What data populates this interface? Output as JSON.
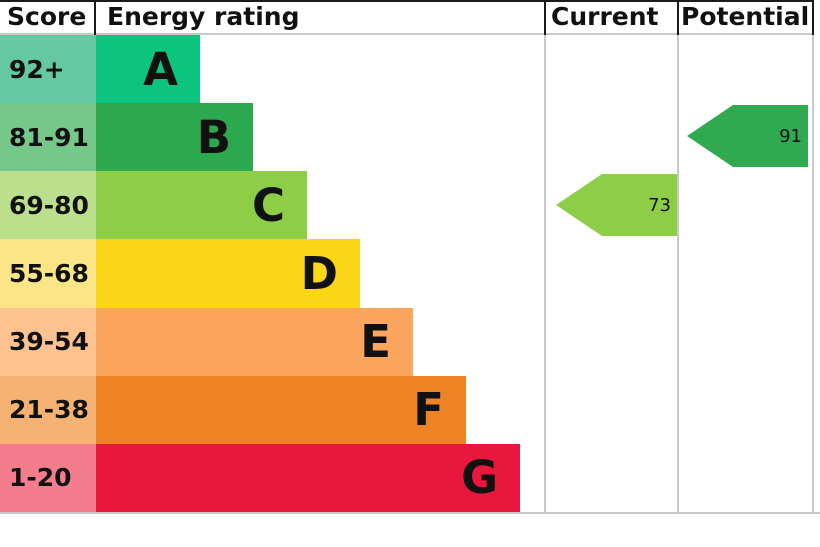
{
  "header": {
    "score": "Score",
    "energy_rating": "Energy rating",
    "current": "Current",
    "potential": "Potential"
  },
  "bands": [
    {
      "score_range": "92+",
      "letter": "A",
      "band_color": "#0bc47e",
      "score_cell_color": "#66c8a3"
    },
    {
      "score_range": "81-91",
      "letter": "B",
      "band_color": "#2ca94f",
      "score_cell_color": "#76c88a"
    },
    {
      "score_range": "69-80",
      "letter": "C",
      "band_color": "#8dce46",
      "score_cell_color": "#bbdf8d"
    },
    {
      "score_range": "55-68",
      "letter": "D",
      "band_color": "#f9d616",
      "score_cell_color": "#fce586"
    },
    {
      "score_range": "39-54",
      "letter": "E",
      "band_color": "#faa65e",
      "score_cell_color": "#fcc290"
    },
    {
      "score_range": "21-38",
      "letter": "F",
      "band_color": "#ee8326",
      "score_cell_color": "#f5b273"
    },
    {
      "score_range": "1-20",
      "letter": "G",
      "band_color": "#e9173d",
      "score_cell_color": "#f37c8d"
    }
  ],
  "current_marker": {
    "value": "73",
    "band": "C",
    "color": "#8dce46"
  },
  "potential_marker": {
    "value": "91",
    "band": "B",
    "color": "#2faa51"
  },
  "chart_data": {
    "type": "bar",
    "title": "Energy rating (EPC) chart",
    "categories": [
      "A",
      "B",
      "C",
      "D",
      "E",
      "F",
      "G"
    ],
    "score_ranges": [
      "92+",
      "81-91",
      "69-80",
      "55-68",
      "39-54",
      "21-38",
      "1-20"
    ],
    "band_colors": [
      "#0bc47e",
      "#2ca94f",
      "#8dce46",
      "#f9d616",
      "#faa65e",
      "#ee8326",
      "#e9173d"
    ],
    "columns": [
      "Score",
      "Energy rating",
      "Current",
      "Potential"
    ],
    "series": [
      {
        "name": "Current",
        "value": 73,
        "band": "C",
        "color": "#8dce46"
      },
      {
        "name": "Potential",
        "value": 91,
        "band": "B",
        "color": "#2faa51"
      }
    ],
    "layout": "horizontal staircase bars, shortest at top (A) to longest at bottom (G); current and potential shown as left-pointing arrow markers in their own columns"
  }
}
